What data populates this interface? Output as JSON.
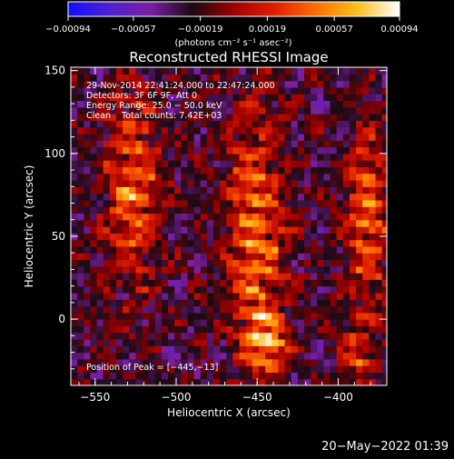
{
  "chart_data": {
    "type": "heatmap",
    "title": "Reconstructed RHESSI Image",
    "xlabel": "Heliocentric X (arcsec)",
    "ylabel": "Heliocentric Y (arcsec)",
    "xlim": [
      -565,
      -370
    ],
    "ylim": [
      -40,
      152
    ],
    "x_ticks": [
      -550,
      -500,
      -450,
      -400
    ],
    "y_ticks": [
      0,
      50,
      100,
      150
    ],
    "x_tick_labels": [
      "−550",
      "−500",
      "−450",
      "−400"
    ],
    "y_tick_labels": [
      "0",
      "50",
      "100",
      "150"
    ],
    "colorbar": {
      "min": -0.00094,
      "max": 0.00094,
      "ticks": [
        -0.00094,
        -0.00057,
        -0.00019,
        0.00019,
        0.00057,
        0.00094
      ],
      "tick_labels": [
        "−0.00094",
        "−0.00057",
        "−0.00019",
        "0.00019",
        "0.00057",
        "0.00094"
      ],
      "unit_label": "(photons cm⁻² s⁻¹ asec⁻²)",
      "colors": [
        "#1010ff",
        "#5020d0",
        "#7a1fa0",
        "#1a0a14",
        "#a00000",
        "#e02000",
        "#ff7000",
        "#ffc020",
        "#ffffff"
      ]
    },
    "annotations": {
      "time_range": "29-Nov-2014 22:41:24.000 to 22:47:24.000",
      "detectors": "Detectors: 3F 6F 9F, Att 0",
      "energy": "Energy Range: 25.0 − 50.0 keV",
      "clean": "Clean    Total counts: 7.42E+03",
      "peak": "Position of Peak = [−445,−13]"
    },
    "sources": [
      {
        "x": -527,
        "y": 80,
        "sx": 11,
        "sy": 40,
        "amp": 0.00084
      },
      {
        "x": -451,
        "y": 52,
        "sx": 12,
        "sy": 48,
        "amp": 0.0009
      },
      {
        "x": -445,
        "y": -13,
        "sx": 9,
        "sy": 12,
        "amp": 0.00094
      },
      {
        "x": -382,
        "y": 60,
        "sx": 9,
        "sy": 38,
        "amp": 0.00082
      },
      {
        "x": -388,
        "y": -22,
        "sx": 6,
        "sy": 10,
        "amp": 0.0006
      }
    ],
    "footer_timestamp": "20−May−2022 01:39"
  }
}
